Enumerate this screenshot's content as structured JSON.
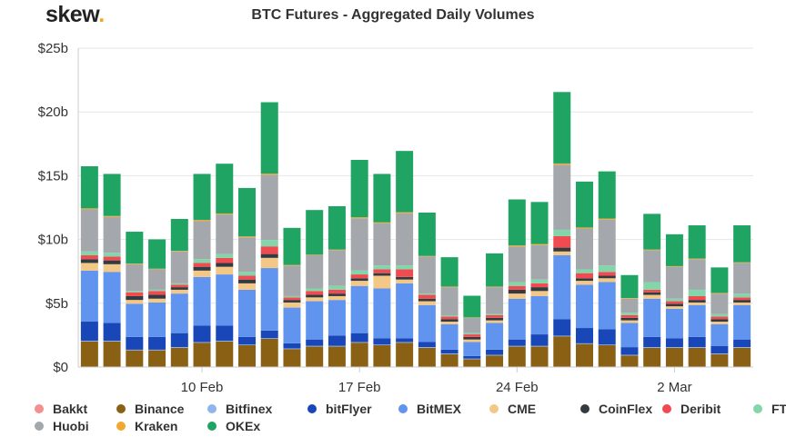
{
  "logo": {
    "text": "skew",
    "dot": "."
  },
  "chart_data": {
    "type": "bar",
    "stacked": true,
    "title": "BTC Futures - Aggregated Daily Volumes",
    "x_tick_labels": [
      "10 Feb",
      "17 Feb",
      "24 Feb",
      "2 Mar"
    ],
    "x_tick_indices": [
      5,
      12,
      19,
      26
    ],
    "y_ticks": [
      "$0",
      "$5b",
      "$10b",
      "$15b",
      "$20b",
      "$25b"
    ],
    "y_tick_values": [
      0,
      5,
      10,
      15,
      20,
      25
    ],
    "ylim": [
      0,
      25
    ],
    "grid": "horizontal",
    "legend_position": "bottom",
    "series": [
      {
        "name": "Bakkt",
        "color": "#f28f8f",
        "values": [
          0.01,
          0.01,
          0.01,
          0.01,
          0.01,
          0.01,
          0.01,
          0.01,
          0.01,
          0.01,
          0.01,
          0.01,
          0.01,
          0.01,
          0.01,
          0.01,
          0.01,
          0.01,
          0.01,
          0.01,
          0.01,
          0.01,
          0.01,
          0.01,
          0.01,
          0.01,
          0.01,
          0.01,
          0.01,
          0.01
        ]
      },
      {
        "name": "Binance",
        "color": "#8a6114",
        "values": [
          2.0,
          2.0,
          1.3,
          1.3,
          1.5,
          1.9,
          2.0,
          1.7,
          2.2,
          1.4,
          1.6,
          1.6,
          1.9,
          1.7,
          1.9,
          1.5,
          1.0,
          0.6,
          0.9,
          1.6,
          1.6,
          2.4,
          1.8,
          1.7,
          0.9,
          1.5,
          1.5,
          1.5,
          1.0,
          1.5
        ]
      },
      {
        "name": "Bitfinex",
        "color": "#8fb5ee",
        "values": [
          0.05,
          0.05,
          0.05,
          0.05,
          0.05,
          0.05,
          0.05,
          0.05,
          0.05,
          0.05,
          0.05,
          0.05,
          0.05,
          0.05,
          0.05,
          0.05,
          0.05,
          0.05,
          0.05,
          0.05,
          0.05,
          0.05,
          0.05,
          0.05,
          0.05,
          0.05,
          0.05,
          0.05,
          0.05,
          0.05
        ]
      },
      {
        "name": "bitFlyer",
        "color": "#1a47b8",
        "values": [
          1.5,
          1.4,
          1.0,
          1.0,
          1.1,
          1.3,
          1.2,
          0.6,
          0.6,
          0.4,
          0.5,
          0.8,
          0.7,
          0.5,
          0.3,
          0.4,
          0.3,
          0.2,
          0.4,
          0.5,
          0.9,
          1.3,
          1.2,
          1.2,
          0.6,
          0.8,
          0.7,
          0.8,
          0.6,
          0.6
        ]
      },
      {
        "name": "BitMEX",
        "color": "#6194ee",
        "values": [
          4.0,
          4.0,
          2.6,
          2.7,
          3.1,
          3.8,
          4.0,
          3.7,
          4.9,
          2.8,
          3.0,
          2.8,
          3.7,
          3.9,
          4.3,
          2.9,
          2.0,
          1.1,
          2.1,
          3.2,
          3.0,
          5.0,
          3.4,
          3.7,
          1.9,
          3.0,
          2.3,
          2.5,
          1.7,
          2.7
        ]
      },
      {
        "name": "CME",
        "color": "#f3c887",
        "values": [
          0.6,
          0.6,
          0.3,
          0.3,
          0.3,
          0.5,
          0.6,
          0.5,
          0.8,
          0.4,
          0.3,
          0.3,
          0.4,
          1.0,
          0.3,
          0.3,
          0.2,
          0.2,
          0.2,
          0.4,
          0.4,
          0.3,
          0.3,
          0.3,
          0.2,
          0.3,
          0.2,
          0.2,
          0.2,
          0.2
        ]
      },
      {
        "name": "CoinFlex",
        "color": "#333b40",
        "values": [
          0.3,
          0.3,
          0.3,
          0.3,
          0.2,
          0.3,
          0.3,
          0.3,
          0.3,
          0.2,
          0.2,
          0.2,
          0.2,
          0.2,
          0.2,
          0.2,
          0.2,
          0.2,
          0.2,
          0.3,
          0.3,
          0.3,
          0.2,
          0.2,
          0.2,
          0.2,
          0.2,
          0.2,
          0.2,
          0.2
        ]
      },
      {
        "name": "Deribit",
        "color": "#f04b50",
        "values": [
          0.3,
          0.3,
          0.3,
          0.3,
          0.2,
          0.3,
          0.4,
          0.3,
          0.6,
          0.2,
          0.3,
          0.3,
          0.3,
          0.3,
          0.6,
          0.3,
          0.2,
          0.2,
          0.2,
          0.3,
          0.3,
          0.9,
          0.4,
          0.3,
          0.2,
          0.2,
          0.2,
          0.3,
          0.2,
          0.2
        ]
      },
      {
        "name": "FTX",
        "color": "#83d6a9",
        "values": [
          0.3,
          0.3,
          0.1,
          0.1,
          0.1,
          0.3,
          0.3,
          0.3,
          0.5,
          0.1,
          0.2,
          0.3,
          0.3,
          0.3,
          0.3,
          0.1,
          0.1,
          0.1,
          0.1,
          0.3,
          0.3,
          0.5,
          0.3,
          0.5,
          0.2,
          0.6,
          0.2,
          0.5,
          0.2,
          0.3
        ]
      },
      {
        "name": "Huobi",
        "color": "#a4a8ad",
        "values": [
          3.3,
          2.8,
          2.1,
          1.6,
          2.5,
          3.0,
          3.1,
          2.7,
          5.1,
          2.4,
          2.6,
          2.8,
          4.1,
          3.3,
          4.1,
          2.9,
          2.2,
          1.2,
          2.1,
          2.8,
          2.7,
          5.1,
          3.2,
          3.6,
          1.1,
          2.5,
          2.5,
          2.4,
          1.6,
          2.4
        ]
      },
      {
        "name": "Kraken",
        "color": "#f0a830",
        "values": [
          0.08,
          0.08,
          0.05,
          0.05,
          0.05,
          0.08,
          0.08,
          0.08,
          0.1,
          0.05,
          0.05,
          0.05,
          0.08,
          0.08,
          0.08,
          0.05,
          0.05,
          0.03,
          0.05,
          0.08,
          0.08,
          0.1,
          0.08,
          0.08,
          0.05,
          0.05,
          0.05,
          0.05,
          0.05,
          0.05
        ]
      },
      {
        "name": "OKEx",
        "color": "#1fa463",
        "values": [
          3.3,
          3.3,
          2.5,
          2.3,
          2.5,
          3.6,
          3.9,
          3.8,
          5.6,
          2.9,
          3.5,
          3.4,
          4.5,
          3.8,
          4.8,
          3.4,
          2.3,
          1.7,
          2.6,
          3.6,
          3.3,
          5.6,
          3.6,
          3.7,
          1.8,
          2.8,
          2.5,
          2.6,
          2.0,
          2.9
        ]
      }
    ]
  }
}
